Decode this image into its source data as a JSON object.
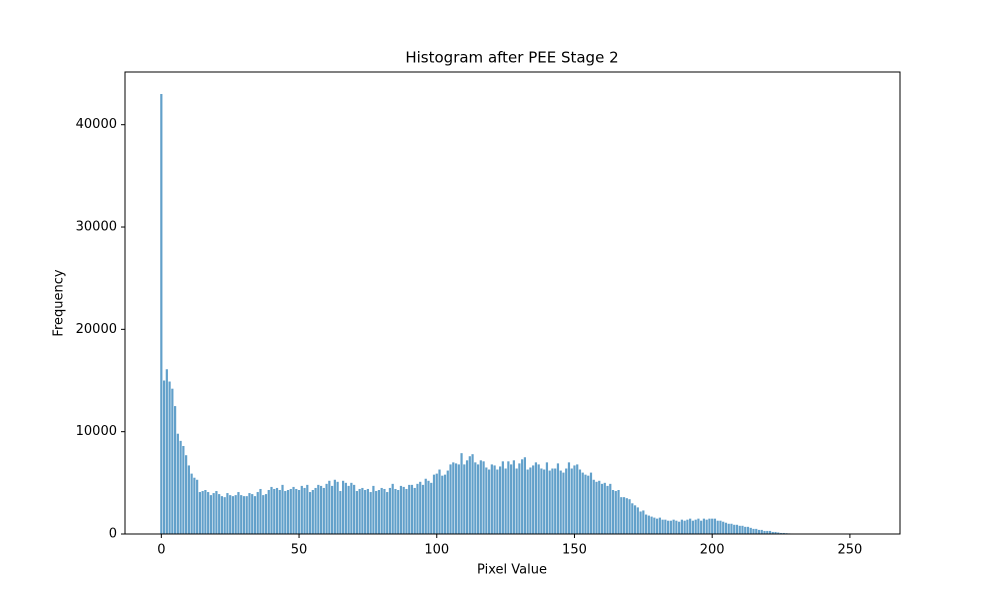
{
  "chart_data": {
    "type": "bar",
    "title": "Histogram after PEE Stage 2",
    "xlabel": "Pixel Value",
    "ylabel": "Frequency",
    "color": "#1f77b4",
    "alpha": 0.7,
    "xlim": [
      -13.19,
      268.19
    ],
    "ylim": [
      0,
      45150
    ],
    "xticks": [
      0,
      50,
      100,
      150,
      200,
      250
    ],
    "yticks": [
      0,
      10000,
      20000,
      30000,
      40000
    ],
    "x": [
      0,
      1,
      2,
      3,
      4,
      5,
      6,
      7,
      8,
      9,
      10,
      11,
      12,
      13,
      14,
      15,
      16,
      17,
      18,
      19,
      20,
      21,
      22,
      23,
      24,
      25,
      26,
      27,
      28,
      29,
      30,
      31,
      32,
      33,
      34,
      35,
      36,
      37,
      38,
      39,
      40,
      41,
      42,
      43,
      44,
      45,
      46,
      47,
      48,
      49,
      50,
      51,
      52,
      53,
      54,
      55,
      56,
      57,
      58,
      59,
      60,
      61,
      62,
      63,
      64,
      65,
      66,
      67,
      68,
      69,
      70,
      71,
      72,
      73,
      74,
      75,
      76,
      77,
      78,
      79,
      80,
      81,
      82,
      83,
      84,
      85,
      86,
      87,
      88,
      89,
      90,
      91,
      92,
      93,
      94,
      95,
      96,
      97,
      98,
      99,
      100,
      101,
      102,
      103,
      104,
      105,
      106,
      107,
      108,
      109,
      110,
      111,
      112,
      113,
      114,
      115,
      116,
      117,
      118,
      119,
      120,
      121,
      122,
      123,
      124,
      125,
      126,
      127,
      128,
      129,
      130,
      131,
      132,
      133,
      134,
      135,
      136,
      137,
      138,
      139,
      140,
      141,
      142,
      143,
      144,
      145,
      146,
      147,
      148,
      149,
      150,
      151,
      152,
      153,
      154,
      155,
      156,
      157,
      158,
      159,
      160,
      161,
      162,
      163,
      164,
      165,
      166,
      167,
      168,
      169,
      170,
      171,
      172,
      173,
      174,
      175,
      176,
      177,
      178,
      179,
      180,
      181,
      182,
      183,
      184,
      185,
      186,
      187,
      188,
      189,
      190,
      191,
      192,
      193,
      194,
      195,
      196,
      197,
      198,
      199,
      200,
      201,
      202,
      203,
      204,
      205,
      206,
      207,
      208,
      209,
      210,
      211,
      212,
      213,
      214,
      215,
      216,
      217,
      218,
      219,
      220,
      221,
      222,
      223,
      224,
      225,
      226,
      227,
      228,
      229,
      230,
      231,
      232,
      233,
      234,
      235,
      236,
      237,
      238,
      239,
      240,
      241,
      242,
      243,
      244,
      245,
      246,
      247,
      248,
      249,
      250,
      251,
      252,
      253,
      254,
      255
    ],
    "values": [
      43000,
      15000,
      16100,
      14900,
      14200,
      12500,
      9800,
      9100,
      8600,
      7700,
      6700,
      5900,
      5500,
      5300,
      4100,
      4200,
      4300,
      4100,
      3800,
      4000,
      4200,
      3900,
      3700,
      3600,
      4000,
      3800,
      3700,
      3800,
      4100,
      3800,
      3700,
      3700,
      4000,
      3900,
      3700,
      4100,
      4400,
      3800,
      3900,
      4300,
      4600,
      4400,
      4500,
      4300,
      4800,
      4200,
      4300,
      4400,
      4600,
      4400,
      4300,
      4700,
      4500,
      4800,
      4100,
      4300,
      4500,
      4800,
      4700,
      4500,
      4900,
      5200,
      4700,
      5300,
      5100,
      4200,
      5200,
      5000,
      4700,
      5000,
      4800,
      4200,
      4400,
      4500,
      4300,
      4400,
      4100,
      4700,
      4200,
      4300,
      4500,
      4400,
      4100,
      4500,
      4900,
      4400,
      4300,
      4700,
      4600,
      4400,
      4800,
      4800,
      4500,
      4900,
      5100,
      4800,
      5400,
      5200,
      5000,
      5800,
      5900,
      6300,
      5700,
      5800,
      6200,
      6800,
      7000,
      6900,
      6800,
      7900,
      6800,
      7200,
      7600,
      7800,
      7000,
      6800,
      7200,
      7100,
      6500,
      6300,
      6800,
      6700,
      6300,
      6600,
      7100,
      6400,
      7100,
      6800,
      7200,
      6400,
      6900,
      7300,
      7500,
      6300,
      6500,
      6700,
      7000,
      6800,
      6400,
      6300,
      7000,
      6200,
      6400,
      6400,
      6900,
      6200,
      6000,
      6400,
      7000,
      6400,
      6700,
      6800,
      6300,
      6000,
      5800,
      5700,
      6000,
      5300,
      5100,
      5200,
      4900,
      5000,
      4700,
      4900,
      4300,
      4200,
      4300,
      3600,
      3600,
      3500,
      3400,
      3000,
      2800,
      2600,
      2200,
      2300,
      1900,
      1800,
      1700,
      1600,
      1500,
      1600,
      1400,
      1400,
      1300,
      1300,
      1400,
      1300,
      1200,
      1400,
      1300,
      1400,
      1500,
      1300,
      1400,
      1500,
      1300,
      1500,
      1400,
      1500,
      1500,
      1500,
      1300,
      1300,
      1200,
      1100,
      1000,
      1000,
      900,
      900,
      800,
      800,
      700,
      700,
      600,
      500,
      500,
      400,
      400,
      300,
      300,
      300,
      200,
      200,
      150,
      100,
      100,
      80,
      60,
      50,
      30,
      20,
      10,
      10,
      5,
      5,
      3,
      2,
      2,
      1,
      1,
      1,
      0,
      0,
      0,
      0,
      0,
      0,
      0,
      0,
      0,
      0,
      0,
      0,
      0,
      0
    ]
  }
}
